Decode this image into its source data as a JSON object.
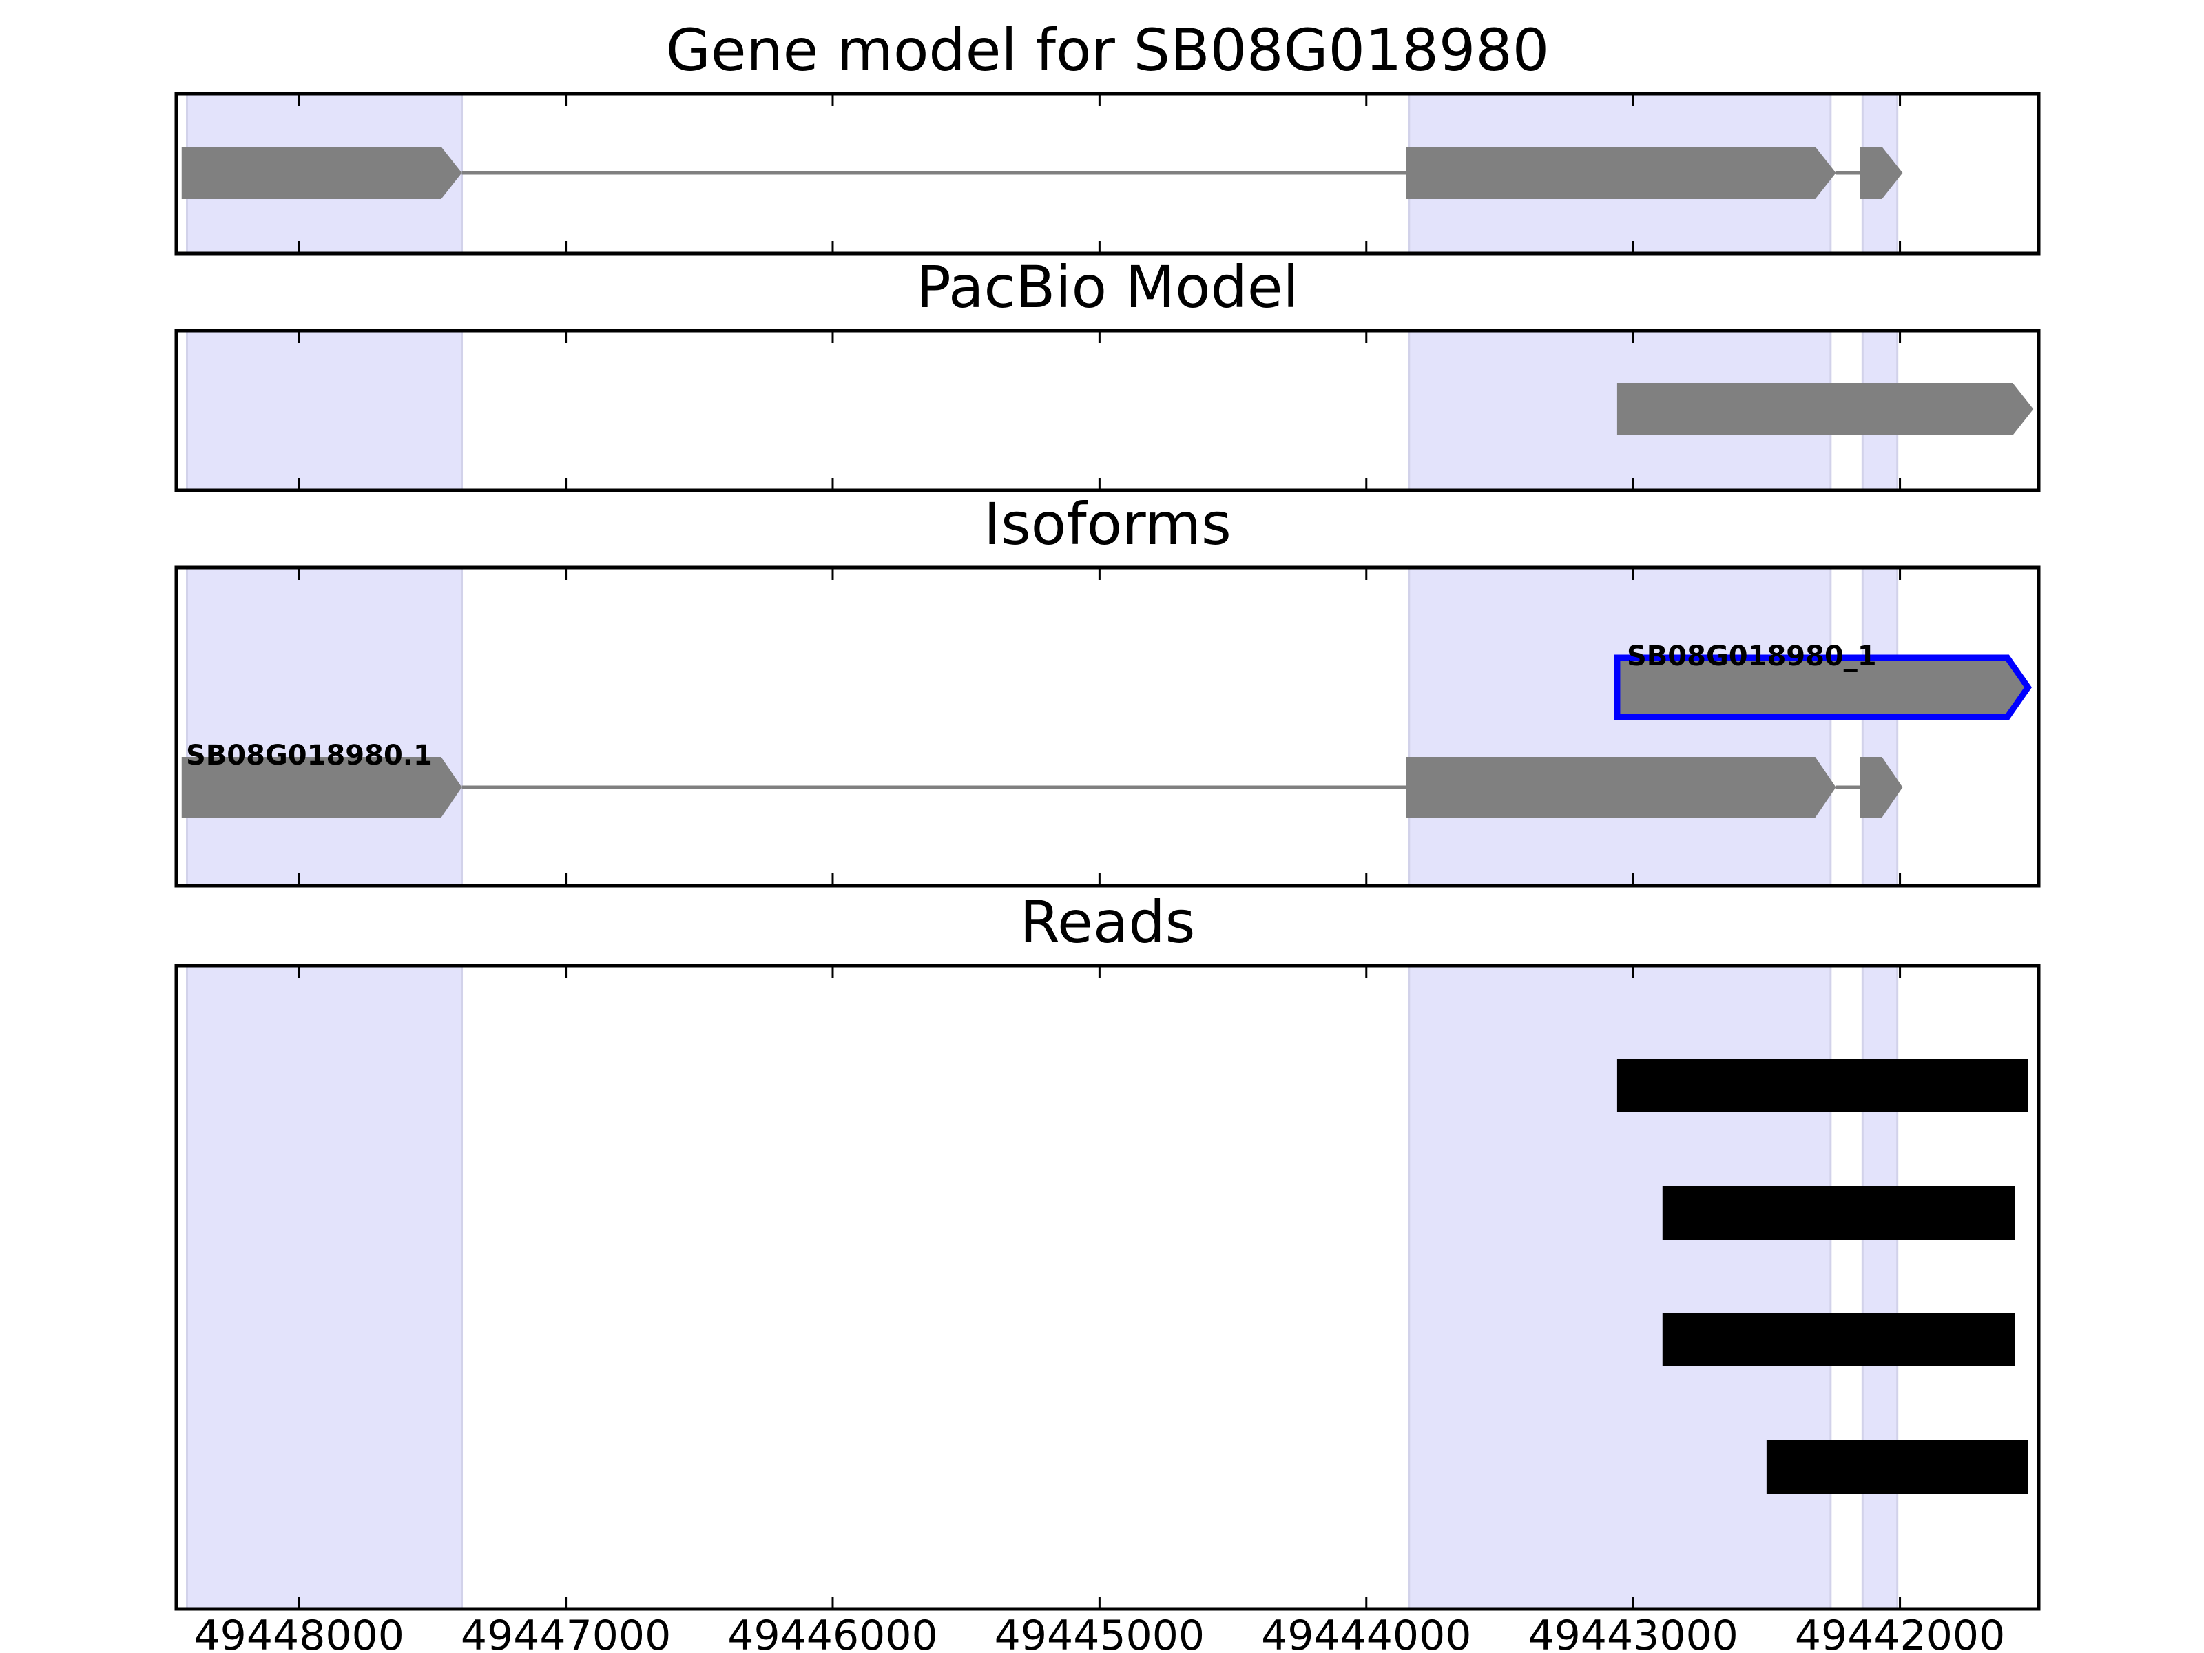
{
  "chart_data": {
    "type": "gene-model-tracks",
    "x_axis": {
      "reversed": true,
      "xlim": [
        49448460,
        49441480
      ],
      "ticks": [
        49448000,
        49447000,
        49446000,
        49445000,
        49444000,
        49443000,
        49442000
      ],
      "tick_labels": [
        "49448000",
        "49447000",
        "49446000",
        "49445000",
        "49444000",
        "49443000",
        "49442000"
      ]
    },
    "highlight_regions": [
      [
        49448420,
        49447390
      ],
      [
        49443840,
        49442260
      ],
      [
        49442140,
        49442010
      ]
    ],
    "colors": {
      "highlight": "#e3e3fb",
      "gene_shape": "#808080",
      "selected_outline": "#0000ff",
      "read": "#000000",
      "frame": "#000000"
    },
    "panels": [
      {
        "title": "Gene model for SB08G018980",
        "features": [
          {
            "kind": "exon",
            "start": 49448440,
            "end": 49447390,
            "arrow": true
          },
          {
            "kind": "intron",
            "start": 49447390,
            "end": 49443850
          },
          {
            "kind": "exon",
            "start": 49443850,
            "end": 49442240,
            "arrow": true
          },
          {
            "kind": "intron",
            "start": 49442240,
            "end": 49442150
          },
          {
            "kind": "exon",
            "start": 49442150,
            "end": 49441990,
            "arrow": true
          }
        ]
      },
      {
        "title": "PacBio Model",
        "features": [
          {
            "kind": "exon",
            "start": 49443060,
            "end": 49441500,
            "arrow": true
          }
        ]
      },
      {
        "title": "Isoforms",
        "isoforms": [
          {
            "label": "SB08G018980_1",
            "selected": true,
            "features": [
              {
                "kind": "exon",
                "start": 49443060,
                "end": 49441520,
                "arrow": true
              }
            ]
          },
          {
            "label": "SB08G018980.1",
            "selected": false,
            "features": [
              {
                "kind": "exon",
                "start": 49448440,
                "end": 49447390,
                "arrow": true
              },
              {
                "kind": "intron",
                "start": 49447390,
                "end": 49443850
              },
              {
                "kind": "exon",
                "start": 49443850,
                "end": 49442240,
                "arrow": true
              },
              {
                "kind": "intron",
                "start": 49442240,
                "end": 49442150
              },
              {
                "kind": "exon",
                "start": 49442150,
                "end": 49441990,
                "arrow": true
              }
            ]
          }
        ]
      },
      {
        "title": "Reads",
        "reads": [
          {
            "start": 49443060,
            "end": 49441520
          },
          {
            "start": 49442890,
            "end": 49441570
          },
          {
            "start": 49442890,
            "end": 49441570
          },
          {
            "start": 49442500,
            "end": 49441520
          }
        ]
      }
    ]
  }
}
